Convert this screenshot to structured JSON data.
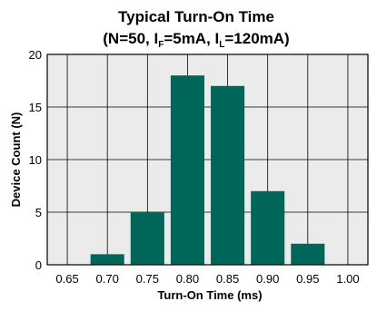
{
  "chart_data": {
    "type": "bar",
    "title_line1": "Typical Turn-On Time",
    "title_line2": {
      "prefix": "(N=50, I",
      "sub1": "F",
      "mid": "=5mA, I",
      "sub2": "L",
      "suffix": "=120mA)"
    },
    "xlabel": "Turn-On Time (ms)",
    "ylabel": "Device Count (N)",
    "x_ticks": [
      "0.65",
      "0.70",
      "0.75",
      "0.80",
      "0.85",
      "0.90",
      "0.95",
      "1.00"
    ],
    "categories": [
      "0.70",
      "0.75",
      "0.80",
      "0.85",
      "0.90",
      "0.95"
    ],
    "values": [
      1,
      5,
      18,
      17,
      7,
      2
    ],
    "y_ticks": [
      "0",
      "5",
      "10",
      "15",
      "20"
    ],
    "ylim": [
      0,
      20
    ],
    "xlim": [
      0.625,
      1.025
    ],
    "grid": true,
    "colors": {
      "bar": "#00665a",
      "plot_bg": "#ebebeb",
      "grid": "#000000"
    }
  }
}
